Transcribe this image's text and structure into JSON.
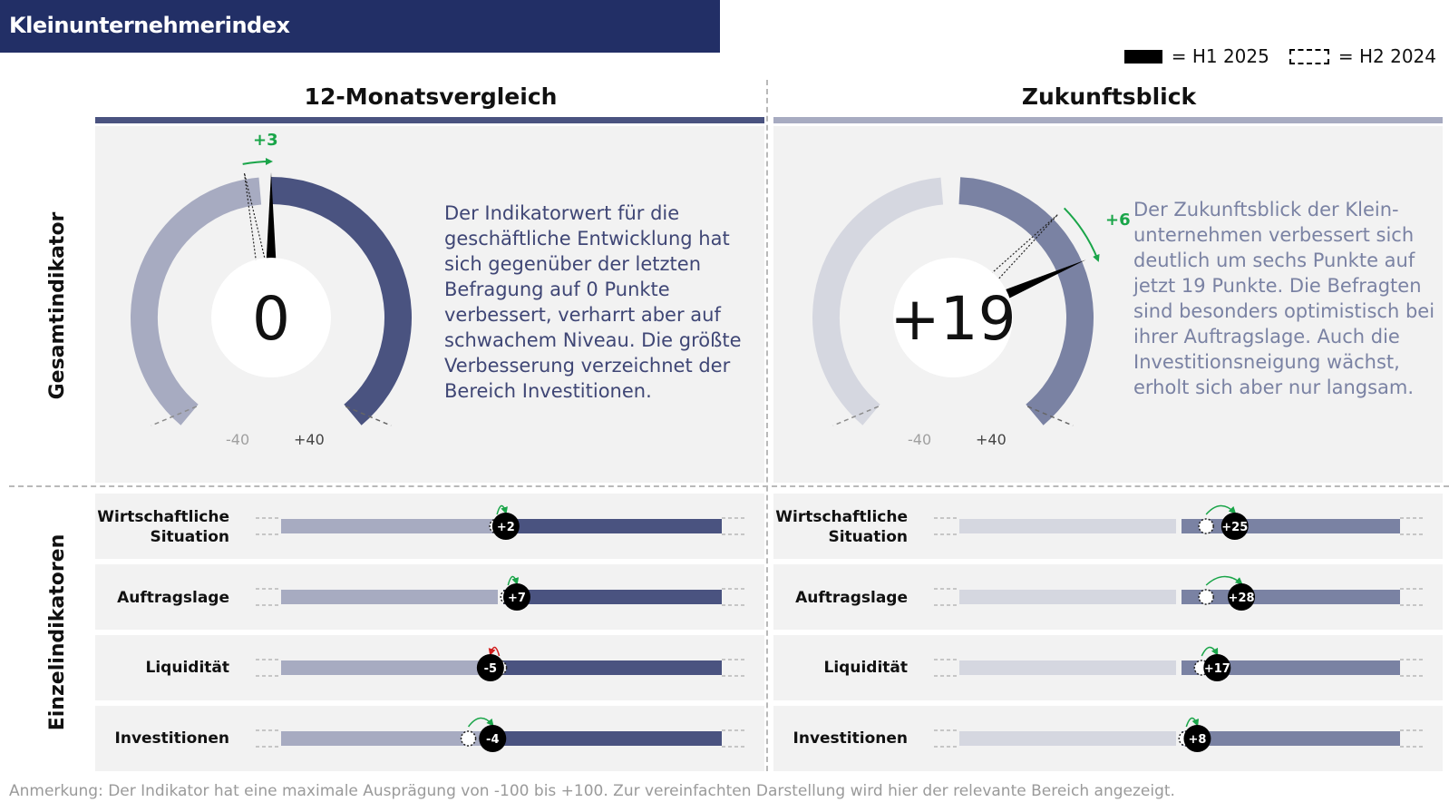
{
  "header": {
    "title": "Kleinunternehmerindex"
  },
  "legend": {
    "solid_label": "= H1 2025",
    "dashed_label": "= H2 2024"
  },
  "colors": {
    "title_bg": "#222f66",
    "dark_bar": "#4a5380",
    "light_bar_12m": "#a7abc1",
    "future_bar": "#7a82a3",
    "future_light": "#d5d7e0",
    "positive": "#1aa549",
    "negative": "#d11f1f",
    "desc_text": "#3f4675"
  },
  "columns": [
    {
      "title": "12-Monatsvergleich"
    },
    {
      "title": "Zukunftsblick"
    }
  ],
  "row_labels": {
    "total": "Gesamtindikator",
    "individual": "Einzelindikatoren"
  },
  "gauges": [
    {
      "value_label": "0",
      "change_label": "+3",
      "min_label": "-40",
      "max_label": "+40",
      "description": "Der Indikatorwert für die geschäftliche Entwicklung hat sich gegenüber der letzten Befragung auf 0 Punkte verbessert, verharrt aber auf schwachem Niveau. Die größte Verbesserung verzeichnet der Bereich Investitionen."
    },
    {
      "value_label": "+19",
      "change_label": "+6",
      "min_label": "-40",
      "max_label": "+40",
      "description": "Der Zukunftsblick der Klein- unternehmen verbessert sich deutlich um sechs Punkte auf jetzt 19 Punkte. Die Befragten sind besonders optimistisch bei ihrer Auftragslage. Auch die Investitionsneigung wächst, erholt sich aber nur langsam."
    }
  ],
  "indicator_labels": [
    [
      "Wirtschaftliche",
      "Situation"
    ],
    [
      "Auftragslage"
    ],
    [
      "Liquidität"
    ],
    [
      "Investitionen"
    ]
  ],
  "indicator_values": [
    [
      "+2",
      "+7",
      "-5",
      "-4"
    ],
    [
      "+25",
      "+28",
      "+17",
      "+8"
    ]
  ],
  "chart_data": [
    {
      "type": "gauge",
      "title": "12-Monatsvergleich",
      "axis_range": [
        -40,
        40
      ],
      "h1_2025": 0,
      "h2_2024": -3,
      "change": 3
    },
    {
      "type": "gauge",
      "title": "Zukunftsblick",
      "axis_range": [
        -40,
        40
      ],
      "h1_2025": 19,
      "h2_2024": 13,
      "change": 6
    },
    {
      "type": "bar",
      "title": "12-Monatsvergleich",
      "categories": [
        "Wirtschaftliche Situation",
        "Auftragslage",
        "Liquidität",
        "Investitionen"
      ],
      "axis_range": [
        -100,
        100
      ],
      "series": [
        {
          "name": "H1 2025",
          "values": [
            2,
            7,
            -5,
            -4
          ]
        },
        {
          "name": "H2 2024",
          "values": [
            -2,
            3,
            -1,
            -15
          ]
        }
      ]
    },
    {
      "type": "bar",
      "title": "Zukunftsblick",
      "categories": [
        "Wirtschaftliche Situation",
        "Auftragslage",
        "Liquidität",
        "Investitionen"
      ],
      "axis_range": [
        -100,
        100
      ],
      "series": [
        {
          "name": "H1 2025",
          "values": [
            25,
            28,
            17,
            8
          ]
        },
        {
          "name": "H2 2024",
          "values": [
            12,
            12,
            10,
            3
          ]
        }
      ]
    }
  ],
  "footnote": "Anmerkung: Der Indikator hat eine maximale Ausprägung von -100 bis +100. Zur vereinfachten Darstellung wird hier der relevante Bereich angezeigt."
}
